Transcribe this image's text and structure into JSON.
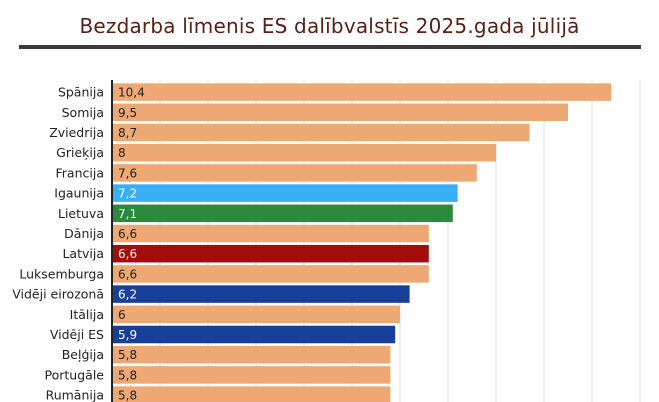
{
  "chart_data": {
    "type": "bar",
    "orientation": "horizontal",
    "title": "Bezdarba līmenis ES dalībvalstīs 2025.gada jūlijā",
    "categories": [
      "Spānija",
      "Somija",
      "Zviedrija",
      "Grieķija",
      "Francija",
      "Igaunija",
      "Lietuva",
      "Dānija",
      "Latvija",
      "Luksemburga",
      "Vidēji eirozonā",
      "Itālija",
      "Vidēji ES",
      "Beļģija",
      "Portugāle",
      "Rumānija"
    ],
    "values": [
      10.4,
      9.5,
      8.7,
      8,
      7.6,
      7.2,
      7.1,
      6.6,
      6.6,
      6.6,
      6.2,
      6,
      5.9,
      5.8,
      5.8,
      5.8
    ],
    "value_labels": [
      "10,4",
      "9,5",
      "8,7",
      "8",
      "7,6",
      "7,2",
      "7,1",
      "6,6",
      "6,6",
      "6,6",
      "6,2",
      "6",
      "5,9",
      "5,8",
      "5,8",
      "5,8"
    ],
    "bar_colors": [
      "#eda873",
      "#eda873",
      "#eda873",
      "#eda873",
      "#eda873",
      "#3aaef5",
      "#2a8a3c",
      "#eda873",
      "#a50c0c",
      "#eda873",
      "#183f9a",
      "#eda873",
      "#183f9a",
      "#eda873",
      "#eda873",
      "#eda873"
    ],
    "label_colors": [
      "#222222",
      "#222222",
      "#222222",
      "#222222",
      "#222222",
      "#ffffff",
      "#ffffff",
      "#222222",
      "#ffffff",
      "#222222",
      "#ffffff",
      "#222222",
      "#ffffff",
      "#222222",
      "#222222",
      "#222222"
    ],
    "xlim": [
      0,
      11
    ],
    "grid": true,
    "xlabel": "",
    "ylabel": ""
  }
}
